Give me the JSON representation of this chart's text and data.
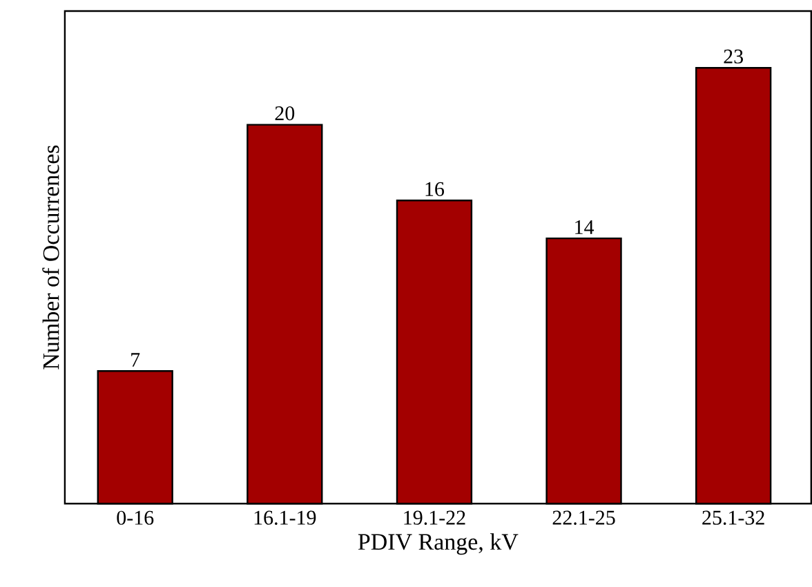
{
  "chart_data": {
    "type": "bar",
    "xlabel": "PDIV Range, kV",
    "ylabel": "Number of Occurrences",
    "categories": [
      "0-16",
      "16.1-19",
      "19.1-22",
      "22.1-25",
      "25.1-32"
    ],
    "values": [
      7,
      20,
      16,
      14,
      23
    ],
    "color": "#a30000",
    "ylim": [
      0,
      26
    ],
    "data_labels": true,
    "tick_labels": "x",
    "grid": false
  }
}
